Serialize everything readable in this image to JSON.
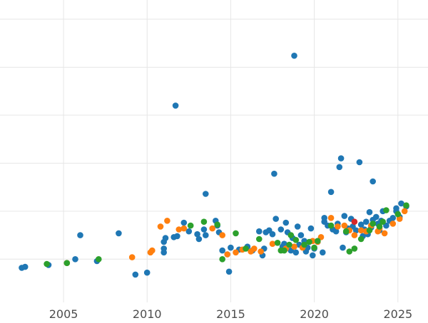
{
  "chart_data": {
    "type": "scatter",
    "title": "",
    "xlabel": "",
    "ylabel": "",
    "xlim": [
      2001.2,
      2026.8
    ],
    "ylim": [
      -4.5,
      27
    ],
    "grid": true,
    "legend": "none",
    "x_ticks": [
      2005,
      2010,
      2015,
      2020,
      2025
    ],
    "x_tick_labels": [
      "2005",
      "2010",
      "2015",
      "2020",
      "2025"
    ],
    "y_gridlines": [
      0,
      5,
      10,
      15,
      20,
      25
    ],
    "colors": {
      "blue": "#1f77b4",
      "orange": "#ff7f0e",
      "green": "#2ca02c",
      "red": "#d62728",
      "grid": "#e6e6e6",
      "tick_label": "#4d4d4d"
    },
    "series": [
      {
        "color": "blue",
        "points": [
          [
            2002.5,
            -0.9
          ],
          [
            2002.7,
            -0.8
          ],
          [
            2004.1,
            -0.6
          ],
          [
            2005.7,
            0.0
          ],
          [
            2006.0,
            2.5
          ],
          [
            2007.0,
            -0.2
          ],
          [
            2008.3,
            2.7
          ],
          [
            2009.3,
            -1.6
          ],
          [
            2010.0,
            -1.4
          ],
          [
            2011.0,
            1.8
          ],
          [
            2011.0,
            1.1
          ],
          [
            2011.0,
            0.7
          ],
          [
            2011.1,
            2.2
          ],
          [
            2011.6,
            2.3
          ],
          [
            2011.7,
            16.0
          ],
          [
            2011.8,
            2.4
          ],
          [
            2012.2,
            3.8
          ],
          [
            2012.5,
            2.9
          ],
          [
            2013.0,
            2.6
          ],
          [
            2013.1,
            2.1
          ],
          [
            2013.4,
            3.1
          ],
          [
            2013.5,
            2.5
          ],
          [
            2013.5,
            6.8
          ],
          [
            2014.1,
            4.0
          ],
          [
            2014.2,
            3.5
          ],
          [
            2014.3,
            2.8
          ],
          [
            2014.5,
            0.9
          ],
          [
            2014.8,
            0.5
          ],
          [
            2014.9,
            -1.3
          ],
          [
            2015.0,
            1.2
          ],
          [
            2015.5,
            1.0
          ],
          [
            2016.0,
            1.3
          ],
          [
            2016.3,
            0.9
          ],
          [
            2016.7,
            2.9
          ],
          [
            2016.9,
            0.4
          ],
          [
            2017.0,
            1.1
          ],
          [
            2017.1,
            2.8
          ],
          [
            2017.3,
            3.0
          ],
          [
            2017.5,
            2.6
          ],
          [
            2017.6,
            8.9
          ],
          [
            2017.7,
            4.2
          ],
          [
            2018.0,
            3.1
          ],
          [
            2018.1,
            1.3
          ],
          [
            2018.2,
            1.6
          ],
          [
            2018.3,
            3.8
          ],
          [
            2018.4,
            2.8
          ],
          [
            2018.6,
            0.9
          ],
          [
            2018.7,
            2.2
          ],
          [
            2018.8,
            21.2
          ],
          [
            2018.9,
            0.7
          ],
          [
            2019.0,
            3.4
          ],
          [
            2019.1,
            1.5
          ],
          [
            2019.2,
            2.5
          ],
          [
            2019.4,
            1.9
          ],
          [
            2019.5,
            0.8
          ],
          [
            2019.6,
            1.2
          ],
          [
            2019.8,
            3.2
          ],
          [
            2019.9,
            0.4
          ],
          [
            2020.0,
            1.1
          ],
          [
            2020.2,
            1.8
          ],
          [
            2020.5,
            0.7
          ],
          [
            2020.6,
            3.9
          ],
          [
            2020.6,
            4.3
          ],
          [
            2020.8,
            3.5
          ],
          [
            2021.0,
            7.0
          ],
          [
            2021.1,
            3.1
          ],
          [
            2021.3,
            2.9
          ],
          [
            2021.4,
            3.7
          ],
          [
            2021.5,
            9.6
          ],
          [
            2021.6,
            10.5
          ],
          [
            2021.7,
            1.2
          ],
          [
            2021.8,
            4.5
          ],
          [
            2021.9,
            2.8
          ],
          [
            2022.0,
            3.2
          ],
          [
            2022.2,
            4.2
          ],
          [
            2022.3,
            3.4
          ],
          [
            2022.5,
            3.0
          ],
          [
            2022.7,
            10.1
          ],
          [
            2022.8,
            3.6
          ],
          [
            2022.9,
            2.4
          ],
          [
            2023.0,
            3.1
          ],
          [
            2023.1,
            3.9
          ],
          [
            2023.2,
            2.6
          ],
          [
            2023.3,
            4.9
          ],
          [
            2023.4,
            3.3
          ],
          [
            2023.5,
            4.1
          ],
          [
            2023.5,
            8.1
          ],
          [
            2023.7,
            4.4
          ],
          [
            2023.8,
            3.7
          ],
          [
            2023.9,
            3.0
          ],
          [
            2024.0,
            4.0
          ],
          [
            2024.1,
            5.0
          ],
          [
            2024.3,
            3.5
          ],
          [
            2024.5,
            4.0
          ],
          [
            2024.7,
            4.3
          ],
          [
            2024.9,
            5.0
          ],
          [
            2024.9,
            5.3
          ],
          [
            2025.1,
            4.4
          ],
          [
            2025.2,
            5.8
          ],
          [
            2025.5,
            5.5
          ]
        ]
      },
      {
        "color": "orange",
        "points": [
          [
            2005.2,
            -0.4
          ],
          [
            2009.1,
            0.2
          ],
          [
            2010.2,
            0.7
          ],
          [
            2010.3,
            0.9
          ],
          [
            2010.8,
            3.4
          ],
          [
            2011.2,
            4.0
          ],
          [
            2011.9,
            3.1
          ],
          [
            2012.2,
            3.2
          ],
          [
            2013.9,
            3.2
          ],
          [
            2014.5,
            2.5
          ],
          [
            2014.8,
            0.5
          ],
          [
            2015.3,
            0.7
          ],
          [
            2015.7,
            1.0
          ],
          [
            2016.2,
            0.8
          ],
          [
            2016.4,
            1.1
          ],
          [
            2016.8,
            0.8
          ],
          [
            2017.5,
            1.6
          ],
          [
            2018.3,
            1.1
          ],
          [
            2018.8,
            1.3
          ],
          [
            2019.3,
            1.2
          ],
          [
            2019.9,
            1.9
          ],
          [
            2020.2,
            1.8
          ],
          [
            2020.4,
            2.3
          ],
          [
            2021.0,
            4.3
          ],
          [
            2021.4,
            3.4
          ],
          [
            2021.8,
            3.5
          ],
          [
            2022.1,
            3.0
          ],
          [
            2022.4,
            2.5
          ],
          [
            2022.8,
            3.0
          ],
          [
            2023.1,
            2.9
          ],
          [
            2023.4,
            3.5
          ],
          [
            2023.8,
            2.9
          ],
          [
            2023.9,
            3.2
          ],
          [
            2024.2,
            2.7
          ],
          [
            2024.7,
            3.7
          ],
          [
            2025.1,
            4.2
          ],
          [
            2025.4,
            5.0
          ]
        ]
      },
      {
        "color": "green",
        "points": [
          [
            2004.0,
            -0.5
          ],
          [
            2005.2,
            -0.4
          ],
          [
            2007.1,
            0.0
          ],
          [
            2012.6,
            3.5
          ],
          [
            2013.4,
            3.9
          ],
          [
            2014.2,
            3.6
          ],
          [
            2014.5,
            0.0
          ],
          [
            2015.3,
            2.7
          ],
          [
            2015.9,
            1.1
          ],
          [
            2016.7,
            2.1
          ],
          [
            2017.8,
            1.7
          ],
          [
            2018.0,
            0.9
          ],
          [
            2018.2,
            0.9
          ],
          [
            2018.5,
            1.5
          ],
          [
            2018.6,
            2.5
          ],
          [
            2018.9,
            2.0
          ],
          [
            2019.4,
            1.5
          ],
          [
            2019.7,
            1.8
          ],
          [
            2020.0,
            1.2
          ],
          [
            2020.2,
            1.9
          ],
          [
            2021.0,
            3.5
          ],
          [
            2021.9,
            2.9
          ],
          [
            2022.1,
            0.8
          ],
          [
            2022.4,
            1.1
          ],
          [
            2022.8,
            2.1
          ],
          [
            2023.3,
            3.0
          ],
          [
            2023.5,
            3.7
          ],
          [
            2023.9,
            3.4
          ],
          [
            2024.1,
            3.9
          ],
          [
            2024.3,
            5.1
          ],
          [
            2025.0,
            4.7
          ],
          [
            2025.5,
            5.6
          ]
        ]
      },
      {
        "color": "red",
        "points": [
          [
            2022.4,
            3.9
          ]
        ]
      }
    ]
  }
}
